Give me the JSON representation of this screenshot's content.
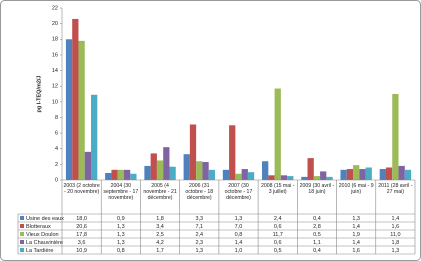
{
  "chart_data": {
    "type": "bar",
    "y_label": "pg I-TEQ/m2/J",
    "categories": [
      "2003 (2 octobre - 20 novembre)",
      "2004 (30 septembre - 17 novembre)",
      "2005 (4 novembre - 21 décembre)",
      "2006 (31 octobre - 18 décembre)",
      "2007 (30 octobre - 17 décembre)",
      "2008 (15 mai - 3 juillet)",
      "2009 (30 avril - 18 juin)",
      "2010 (6 mai - 9 juin)",
      "2011 (28 avril - 27 mai)"
    ],
    "series": [
      {
        "name": "Usine des eaux",
        "color": "#4f81bd",
        "values": [
          18.0,
          0.9,
          1.8,
          3.3,
          1.3,
          2.4,
          0.4,
          1.3,
          1.4
        ],
        "value_labels": [
          "18,0",
          "0,9",
          "1,8",
          "3,3",
          "1,3",
          "2,4",
          "0,4",
          "1,3",
          "1,4"
        ]
      },
      {
        "name": "Blotteraux",
        "color": "#c0504d",
        "values": [
          20.6,
          1.3,
          3.4,
          7.1,
          7.0,
          0.6,
          2.8,
          1.4,
          1.6
        ],
        "value_labels": [
          "20,6",
          "1,3",
          "3,4",
          "7,1",
          "7,0",
          "0,6",
          "2,8",
          "1,4",
          "1,6"
        ]
      },
      {
        "name": "Vieux Doulon",
        "color": "#9bbb59",
        "values": [
          17.8,
          1.3,
          2.5,
          2.4,
          0.8,
          11.7,
          0.5,
          1.9,
          11.0
        ],
        "value_labels": [
          "17,8",
          "1,3",
          "2,5",
          "2,4",
          "0,8",
          "11,7",
          "0,5",
          "1,9",
          "11,0"
        ]
      },
      {
        "name": "La Chauvinière",
        "color": "#8064a2",
        "values": [
          3.6,
          1.3,
          4.2,
          2.3,
          1.4,
          0.6,
          1.1,
          1.4,
          1.8
        ],
        "value_labels": [
          "3,6",
          "1,3",
          "4,2",
          "2,3",
          "1,4",
          "0,6",
          "1,1",
          "1,4",
          "1,8"
        ]
      },
      {
        "name": "La Tardière",
        "color": "#4bacc6",
        "values": [
          10.9,
          0.8,
          1.7,
          1.3,
          1.0,
          0.5,
          0.4,
          1.6,
          1.3
        ],
        "value_labels": [
          "10,9",
          "0,8",
          "1,7",
          "1,3",
          "1,0",
          "0,5",
          "0,4",
          "1,6",
          "1,3"
        ]
      }
    ],
    "ylim": [
      0,
      22
    ],
    "yticks": [
      0,
      2,
      4,
      6,
      8,
      10,
      12,
      14,
      16,
      18,
      20,
      22
    ],
    "grid": false
  }
}
